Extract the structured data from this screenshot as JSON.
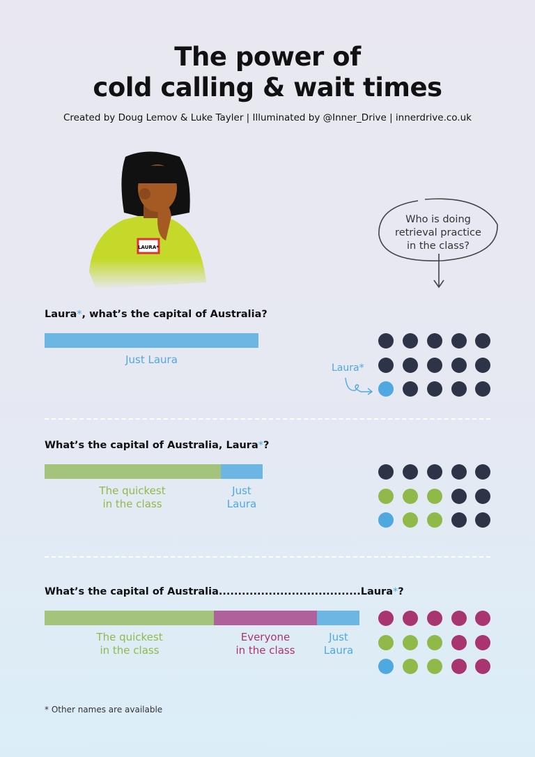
{
  "header": {
    "title_line1": "The power of",
    "title_line2": "cold calling & wait times",
    "credits": "Created by Doug Lemov & Luke Tayler | Illuminated by @Inner_Drive | innerdrive.co.uk"
  },
  "character": {
    "name_tag": "LAURA*"
  },
  "bubble": {
    "text_line1": "Who is doing",
    "text_line2": "retrieval practice",
    "text_line3": "in the class?"
  },
  "colors": {
    "dark": "#2e3448",
    "blue": "#4fa8e0",
    "green": "#8fba4a",
    "purple": "#a8356f",
    "bar_blue": "#6cb6e4",
    "bar_green": "#a3c47a",
    "bar_purple": "#b0609a"
  },
  "sections": [
    {
      "question_pre": "Laura",
      "question_ast": "*",
      "question_post": ", what’s the capital of Australia?",
      "segments": [
        {
          "label": "Just Laura",
          "color": "blue"
        }
      ],
      "pointer_label": "Laura*",
      "grid": [
        [
          "dark",
          "dark",
          "dark",
          "dark",
          "dark"
        ],
        [
          "dark",
          "dark",
          "dark",
          "dark",
          "dark"
        ],
        [
          "blue",
          "dark",
          "dark",
          "dark",
          "dark"
        ]
      ]
    },
    {
      "question_pre": "What’s the capital of Australia, Laura",
      "question_ast": "*",
      "question_post": "?",
      "segments": [
        {
          "label_line1": "The quickest",
          "label_line2": "in the class",
          "color": "green"
        },
        {
          "label_line1": "Just",
          "label_line2": "Laura",
          "color": "blue"
        }
      ],
      "grid": [
        [
          "dark",
          "dark",
          "dark",
          "dark",
          "dark"
        ],
        [
          "green",
          "green",
          "green",
          "dark",
          "dark"
        ],
        [
          "blue",
          "green",
          "green",
          "dark",
          "dark"
        ]
      ]
    },
    {
      "question_pre": "What’s the capital of Australia.....................................Laura",
      "question_ast": "*",
      "question_post": "?",
      "segments": [
        {
          "label_line1": "The quickest",
          "label_line2": "in the class",
          "color": "green"
        },
        {
          "label_line1": "Everyone",
          "label_line2": "in the class",
          "color": "purple"
        },
        {
          "label_line1": "Just",
          "label_line2": "Laura",
          "color": "blue"
        }
      ],
      "grid": [
        [
          "purple",
          "purple",
          "purple",
          "purple",
          "purple"
        ],
        [
          "green",
          "green",
          "green",
          "purple",
          "purple"
        ],
        [
          "blue",
          "green",
          "green",
          "purple",
          "purple"
        ]
      ]
    }
  ],
  "footnote": "* Other names are available"
}
